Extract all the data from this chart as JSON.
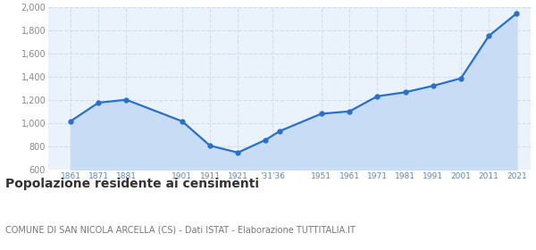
{
  "years": [
    1861,
    1871,
    1881,
    1901,
    1911,
    1921,
    1931,
    1936,
    1951,
    1961,
    1971,
    1981,
    1991,
    2001,
    2011,
    2021
  ],
  "population": [
    1020,
    1180,
    1205,
    1020,
    810,
    750,
    860,
    935,
    1085,
    1105,
    1235,
    1270,
    1325,
    1390,
    1755,
    1950
  ],
  "ylim": [
    600,
    2000
  ],
  "yticks": [
    600,
    800,
    1000,
    1200,
    1400,
    1600,
    1800,
    2000
  ],
  "line_color": "#2970c8",
  "fill_color": "#c8ddf5",
  "marker_color": "#2970c8",
  "bg_color": "#eaf2fb",
  "grid_color": "#d0dff0",
  "title": "Popolazione residente ai censimenti",
  "subtitle": "COMUNE DI SAN NICOLA ARCELLA (CS) - Dati ISTAT - Elaborazione TUTTITALIA.IT",
  "title_fontsize": 10,
  "subtitle_fontsize": 7,
  "tick_label_color": "#5588cc",
  "ytick_label_color": "#888888",
  "xlim_left": 1853,
  "xlim_right": 2026
}
